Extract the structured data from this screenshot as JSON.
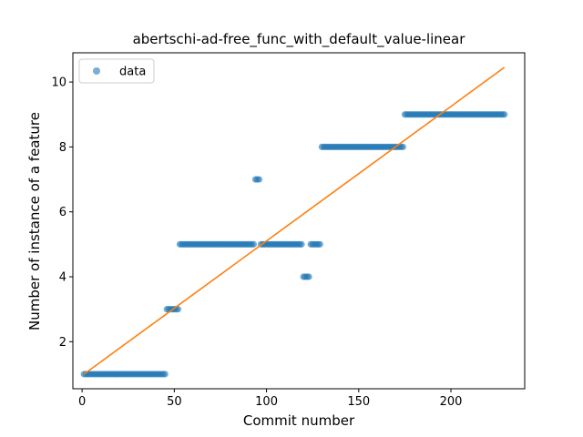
{
  "chart_data": {
    "type": "scatter",
    "title": "abertschi-ad-free_func_with_default_value-linear",
    "xlabel": "Commit number",
    "ylabel": "Number of instance of a feature",
    "xlim": [
      -5,
      240
    ],
    "ylim": [
      0.55,
      10.9
    ],
    "xticks": [
      0,
      50,
      100,
      150,
      200
    ],
    "yticks": [
      2,
      4,
      6,
      8,
      10
    ],
    "grid": false,
    "legend_position": "top-left",
    "colors": {
      "data": "#1f77b4",
      "fit": "#ff7f0e"
    },
    "series": [
      {
        "name": "data",
        "kind": "points",
        "segments": [
          {
            "x_start": 1,
            "x_end": 45,
            "y": 1
          },
          {
            "x_start": 46,
            "x_end": 52,
            "y": 3
          },
          {
            "x_start": 53,
            "x_end": 93,
            "y": 5
          },
          {
            "x_start": 94,
            "x_end": 96,
            "y": 7
          },
          {
            "x_start": 97,
            "x_end": 119,
            "y": 5
          },
          {
            "x_start": 120,
            "x_end": 123,
            "y": 4
          },
          {
            "x_start": 124,
            "x_end": 129,
            "y": 5
          },
          {
            "x_start": 130,
            "x_end": 174,
            "y": 8
          },
          {
            "x_start": 175,
            "x_end": 229,
            "y": 9
          }
        ]
      },
      {
        "kind": "line",
        "x": [
          1,
          229
        ],
        "y": [
          1.0,
          10.45
        ]
      }
    ]
  }
}
